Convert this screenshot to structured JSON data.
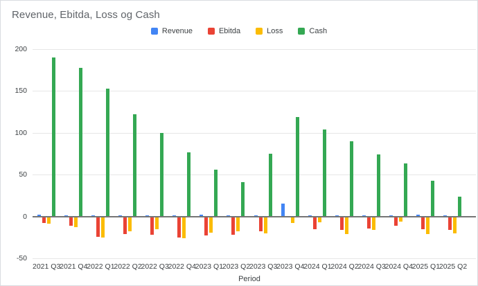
{
  "title": "Revenue, Ebitda, Loss og Cash",
  "x_axis_title": "Period",
  "colors": {
    "revenue": "#4285f4",
    "ebitda": "#ea4335",
    "loss": "#fbbc04",
    "cash": "#34a853",
    "gridline": "#e6e6e6",
    "zero_line": "#757575",
    "title_text": "#5f6368",
    "tick_text": "#3c4043"
  },
  "chart_data": {
    "type": "bar",
    "title": "Revenue, Ebitda, Loss og Cash",
    "xlabel": "Period",
    "ylabel": "",
    "ylim": [
      -50,
      200
    ],
    "y_ticks": [
      200,
      150,
      100,
      50,
      0,
      -50
    ],
    "grid": true,
    "legend_position": "top-center",
    "categories": [
      "2021 Q3",
      "2021 Q4",
      "2022 Q1",
      "2022 Q2",
      "2022 Q3",
      "2022 Q4",
      "2023 Q1",
      "2023 Q2",
      "2023 Q3",
      "2023 Q4",
      "2024 Q1",
      "2024 Q2",
      "2024 Q3",
      "2024 Q4",
      "2025 Q1",
      "2025 Q2"
    ],
    "series": [
      {
        "name": "Revenue",
        "color": "#4285f4",
        "values": [
          2,
          1,
          1,
          1,
          1,
          1,
          2,
          1,
          1,
          15,
          1,
          1,
          1,
          1,
          2,
          1
        ]
      },
      {
        "name": "Ebitda",
        "color": "#ea4335",
        "values": [
          -8,
          -11,
          -24,
          -21,
          -22,
          -25,
          -23,
          -22,
          -18,
          -1,
          -15,
          -16,
          -14,
          -11,
          -15,
          -16
        ]
      },
      {
        "name": "Loss",
        "color": "#fbbc04",
        "values": [
          -9,
          -13,
          -25,
          -18,
          -15,
          -26,
          -19,
          -18,
          -20,
          -8,
          -7,
          -21,
          -16,
          -6,
          -21,
          -20
        ]
      },
      {
        "name": "Cash",
        "color": "#34a853",
        "values": [
          190,
          178,
          153,
          122,
          100,
          77,
          56,
          41,
          75,
          119,
          104,
          90,
          74,
          63,
          43,
          24
        ]
      }
    ]
  }
}
